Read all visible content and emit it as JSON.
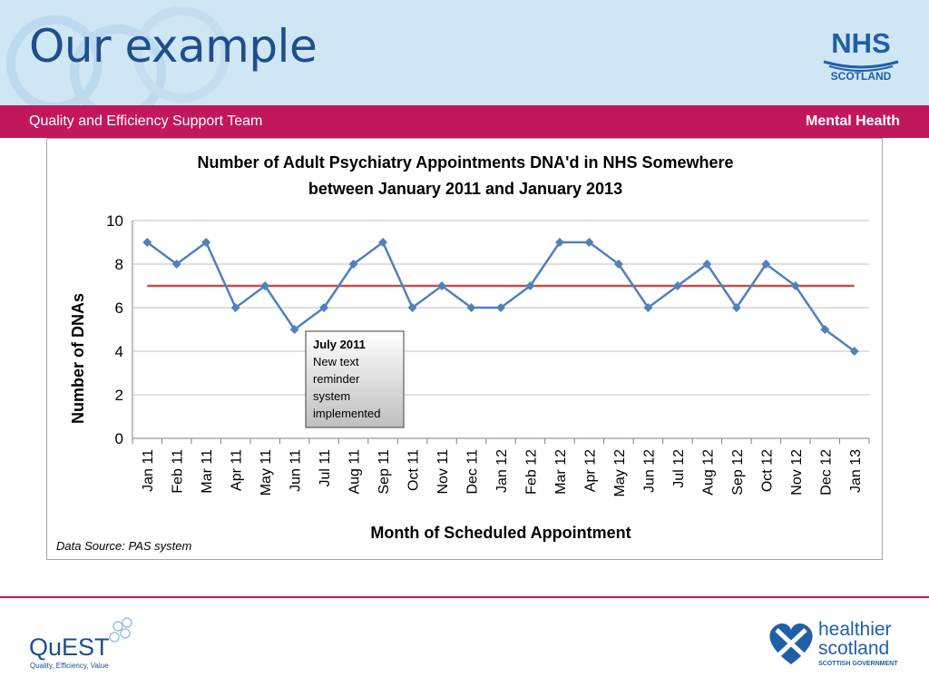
{
  "slide": {
    "title": "Our example",
    "band_left": "Quality and Efficiency Support Team",
    "band_right": "Mental Health",
    "nhs_logo": {
      "line1": "NHS",
      "line2": "SCOTLAND"
    },
    "quest_logo": {
      "name": "QuEST",
      "tagline": "Quality, Efficiency, Value"
    },
    "healthier_logo": {
      "line1": "healthier",
      "line2": "scotland",
      "line3": "SCOTTISH GOVERNMENT"
    },
    "colors": {
      "header": "#cfe6f5",
      "band": "#c2185b",
      "title": "#1f4e8c",
      "series": "#4f81bd",
      "mean": "#c0504d"
    }
  },
  "chart_data": {
    "type": "line",
    "title_line1": "Number of Adult Psychiatry Appointments DNA'd in NHS Somewhere",
    "title_line2": "between January 2011 and January 2013",
    "xlabel": "Month of Scheduled Appointment",
    "ylabel": "Number of DNAs",
    "ylim": [
      0,
      10
    ],
    "yticks": [
      "0",
      "2",
      "4",
      "6",
      "8",
      "10"
    ],
    "categories": [
      "Jan 11",
      "Feb 11",
      "Mar 11",
      "Apr 11",
      "May 11",
      "Jun 11",
      "Jul 11",
      "Aug 11",
      "Sep 11",
      "Oct 11",
      "Nov 11",
      "Dec 11",
      "Jan 12",
      "Feb 12",
      "Mar 12",
      "Apr 12",
      "May 12",
      "Jun 12",
      "Jul 12",
      "Aug 12",
      "Sep 12",
      "Oct 12",
      "Nov 12",
      "Dec 12",
      "Jan 13"
    ],
    "series": [
      {
        "values": [
          9,
          8,
          9,
          6,
          7,
          5,
          6,
          8,
          9,
          6,
          7,
          6,
          6,
          7,
          9,
          9,
          8,
          6,
          7,
          8,
          6,
          8,
          7,
          5,
          4
        ]
      },
      {
        "values": [
          7,
          7,
          7,
          7,
          7,
          7,
          7,
          7,
          7,
          7,
          7,
          7,
          7,
          7,
          7,
          7,
          7,
          7,
          7,
          7,
          7,
          7,
          7,
          7,
          7
        ]
      }
    ],
    "grid": true,
    "annotation": {
      "title": "July 2011",
      "lines": [
        "New text",
        "reminder",
        "system",
        "implemented"
      ]
    },
    "source": "Data Source: PAS system"
  }
}
